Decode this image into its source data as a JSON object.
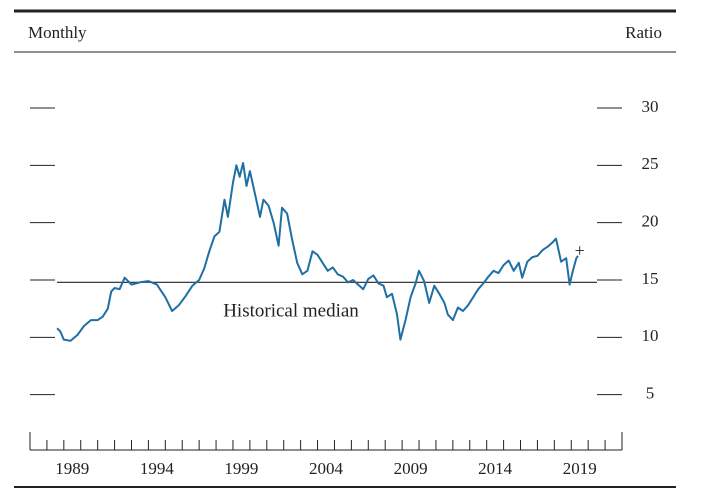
{
  "chart_data": {
    "type": "line",
    "left_label": "Monthly",
    "right_label": "Ratio",
    "color": "#1f6fa5",
    "x": [
      1988.6,
      1988.8,
      1989.0,
      1989.4,
      1989.8,
      1990.2,
      1990.6,
      1991.0,
      1991.3,
      1991.6,
      1991.8,
      1992.0,
      1992.3,
      1992.6,
      1993.0,
      1993.5,
      1994.0,
      1994.5,
      1995.0,
      1995.4,
      1995.8,
      1996.2,
      1996.6,
      1997.0,
      1997.3,
      1997.6,
      1997.9,
      1998.2,
      1998.5,
      1998.7,
      1999.0,
      1999.2,
      1999.4,
      1999.6,
      1999.8,
      2000.0,
      2000.3,
      2000.6,
      2000.8,
      2001.1,
      2001.4,
      2001.7,
      2001.9,
      2002.2,
      2002.5,
      2002.8,
      2003.1,
      2003.4,
      2003.7,
      2004.0,
      2004.3,
      2004.6,
      2004.9,
      2005.2,
      2005.5,
      2005.8,
      2006.1,
      2006.4,
      2006.7,
      2007.0,
      2007.3,
      2007.6,
      2007.9,
      2008.1,
      2008.4,
      2008.7,
      2008.9,
      2009.2,
      2009.5,
      2009.8,
      2010.0,
      2010.3,
      2010.6,
      2010.9,
      2011.2,
      2011.5,
      2011.7,
      2012.0,
      2012.3,
      2012.6,
      2012.9,
      2013.2,
      2013.5,
      2013.8,
      2014.1,
      2014.4,
      2014.7,
      2015.0,
      2015.3,
      2015.6,
      2015.9,
      2016.1,
      2016.4,
      2016.7,
      2017.0,
      2017.3,
      2017.6,
      2017.9,
      2018.1,
      2018.4,
      2018.7,
      2018.9,
      2019.1,
      2019.3,
      2019.4
    ],
    "values": [
      10.8,
      10.5,
      9.8,
      9.7,
      10.2,
      11,
      11.5,
      11.5,
      11.8,
      12.5,
      14,
      14.3,
      14.2,
      15.2,
      14.6,
      14.8,
      14.9,
      14.6,
      13.5,
      12.3,
      12.8,
      13.6,
      14.5,
      15,
      16,
      17.5,
      18.8,
      19.2,
      22,
      20.5,
      23.5,
      25,
      24,
      25.2,
      23.2,
      24.5,
      22.5,
      20.5,
      22,
      21.5,
      20,
      18,
      21.3,
      20.8,
      18.5,
      16.5,
      15.5,
      15.8,
      17.5,
      17.2,
      16.5,
      15.8,
      16.1,
      15.5,
      15.3,
      14.8,
      15,
      14.6,
      14.2,
      15.1,
      15.4,
      14.7,
      14.5,
      13.5,
      13.8,
      12,
      9.8,
      11.5,
      13.5,
      14.7,
      15.8,
      14.9,
      13,
      14.5,
      13.8,
      13,
      12,
      11.5,
      12.6,
      12.3,
      12.8,
      13.5,
      14.2,
      14.7,
      15.3,
      15.8,
      15.6,
      16.3,
      16.7,
      15.8,
      16.5,
      15.2,
      16.6,
      17,
      17.1,
      17.6,
      17.9,
      18.3,
      18.6,
      16.6,
      16.9,
      14.6,
      15.8,
      16.9,
      17.1
    ],
    "median": 14.8,
    "median_label": "Historical median",
    "marker": {
      "x": 2019.5,
      "y": 17.4,
      "symbol": "+"
    },
    "xlim": [
      1987,
      2022
    ],
    "xticks": [
      1987,
      1988,
      1989,
      1990,
      1991,
      1992,
      1993,
      1994,
      1995,
      1996,
      1997,
      1998,
      1999,
      2000,
      2001,
      2002,
      2003,
      2004,
      2005,
      2006,
      2007,
      2008,
      2009,
      2010,
      2011,
      2012,
      2013,
      2014,
      2015,
      2016,
      2017,
      2018,
      2019,
      2020,
      2021,
      2022
    ],
    "xlabels": [
      1989,
      1994,
      1999,
      2004,
      2009,
      2014,
      2019
    ],
    "ylim": [
      0,
      30
    ],
    "yticks": [
      5,
      10,
      15,
      20,
      25,
      30
    ]
  }
}
